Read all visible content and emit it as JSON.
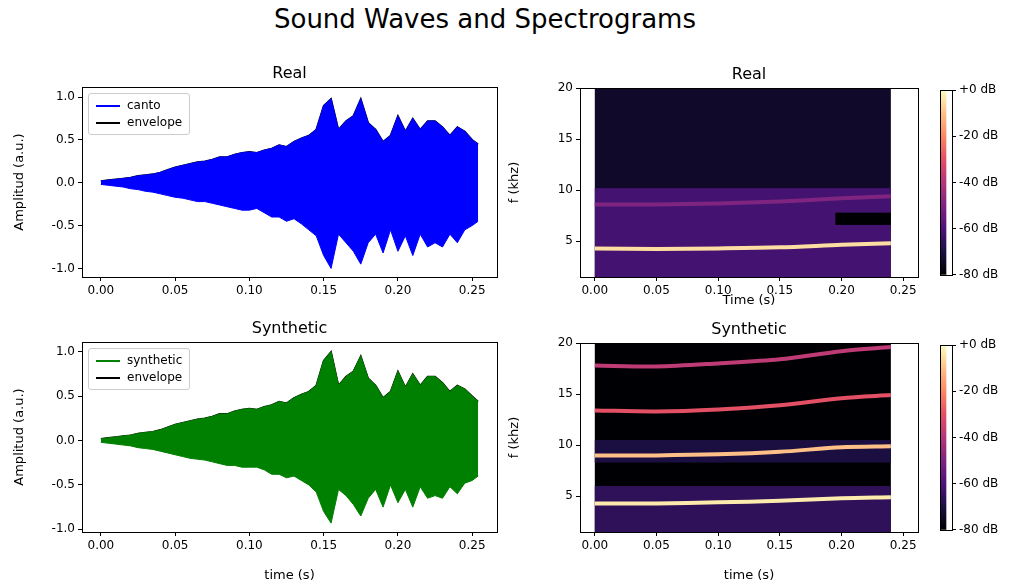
{
  "title": "Sound Waves and Spectrograms",
  "chart_data": [
    {
      "type": "line",
      "title": "Real",
      "y_label": "Amplitud (a.u.)",
      "x": [
        0,
        0.005,
        0.01,
        0.015,
        0.02,
        0.025,
        0.03,
        0.035,
        0.04,
        0.045,
        0.05,
        0.055,
        0.06,
        0.065,
        0.07,
        0.075,
        0.08,
        0.085,
        0.09,
        0.095,
        0.1,
        0.105,
        0.11,
        0.115,
        0.12,
        0.125,
        0.13,
        0.135,
        0.14,
        0.145,
        0.15,
        0.155,
        0.16,
        0.165,
        0.17,
        0.175,
        0.18,
        0.185,
        0.19,
        0.195,
        0.2,
        0.205,
        0.21,
        0.215,
        0.22,
        0.225,
        0.23,
        0.235,
        0.24,
        0.245,
        0.25,
        0.254
      ],
      "xlim": [
        -0.0127,
        0.2667
      ],
      "ylim": [
        -1.1,
        1.117
      ],
      "xticks": [
        {
          "value": 0,
          "label": "0.00"
        },
        {
          "value": 0.05,
          "label": "0.05"
        },
        {
          "value": 0.1,
          "label": "0.10"
        },
        {
          "value": 0.15,
          "label": "0.15"
        },
        {
          "value": 0.2,
          "label": "0.20"
        },
        {
          "value": 0.25,
          "label": "0.25"
        }
      ],
      "yticks": [
        {
          "value": -1,
          "label": "-1.0"
        },
        {
          "value": -0.5,
          "label": "-0.5"
        },
        {
          "value": 0,
          "label": "0.0"
        },
        {
          "value": 0.5,
          "label": "0.5"
        },
        {
          "value": 1,
          "label": "1.0"
        }
      ],
      "grid": false,
      "legend": "upper left",
      "series": [
        {
          "name": "canto",
          "color": "#0000ff",
          "values": [
            0.02,
            0.03,
            0.04,
            0.05,
            0.06,
            0.08,
            0.09,
            0.1,
            0.12,
            0.15,
            0.18,
            0.2,
            0.22,
            0.24,
            0.25,
            0.27,
            0.3,
            0.3,
            0.33,
            0.35,
            0.36,
            0.35,
            0.38,
            0.4,
            0.44,
            0.42,
            0.48,
            0.52,
            0.55,
            0.62,
            0.9,
            0.98,
            0.62,
            0.72,
            0.78,
            0.98,
            0.7,
            0.62,
            0.48,
            0.55,
            0.78,
            0.6,
            0.75,
            0.62,
            0.72,
            0.72,
            0.65,
            0.55,
            0.65,
            0.6,
            0.5,
            0.45
          ],
          "lower": [
            -0.02,
            -0.03,
            -0.04,
            -0.05,
            -0.07,
            -0.08,
            -0.1,
            -0.11,
            -0.13,
            -0.15,
            -0.17,
            -0.18,
            -0.2,
            -0.22,
            -0.22,
            -0.24,
            -0.26,
            -0.28,
            -0.3,
            -0.32,
            -0.32,
            -0.3,
            -0.35,
            -0.4,
            -0.4,
            -0.45,
            -0.42,
            -0.48,
            -0.55,
            -0.62,
            -0.85,
            -1.0,
            -0.6,
            -0.7,
            -0.8,
            -0.95,
            -0.7,
            -0.6,
            -0.82,
            -0.55,
            -0.8,
            -0.62,
            -0.85,
            -0.6,
            -0.75,
            -0.7,
            -0.75,
            -0.6,
            -0.7,
            -0.55,
            -0.5,
            -0.45
          ]
        },
        {
          "name": "envelope",
          "color": "#000000",
          "values": [
            0.02,
            0.03,
            0.04,
            0.05,
            0.06,
            0.08,
            0.09,
            0.1,
            0.12,
            0.15,
            0.18,
            0.2,
            0.22,
            0.24,
            0.25,
            0.27,
            0.3,
            0.3,
            0.33,
            0.35,
            0.36,
            0.35,
            0.38,
            0.4,
            0.44,
            0.42,
            0.48,
            0.52,
            0.55,
            0.62,
            0.9,
            0.98,
            0.62,
            0.72,
            0.78,
            0.98,
            0.7,
            0.62,
            0.48,
            0.55,
            0.78,
            0.6,
            0.75,
            0.62,
            0.72,
            0.72,
            0.65,
            0.55,
            0.65,
            0.6,
            0.5,
            0.45
          ]
        }
      ]
    },
    {
      "type": "spectrogram",
      "title": "Real",
      "x_label": "Time (s)",
      "y_label": "f (khz)",
      "xlim": [
        -0.012,
        0.262
      ],
      "ylim": [
        1.5,
        20
      ],
      "xticks": [
        {
          "value": 0,
          "label": "0.00"
        },
        {
          "value": 0.05,
          "label": "0.05"
        },
        {
          "value": 0.1,
          "label": "0.10"
        },
        {
          "value": 0.15,
          "label": "0.15"
        },
        {
          "value": 0.2,
          "label": "0.20"
        },
        {
          "value": 0.25,
          "label": "0.25"
        }
      ],
      "yticks": [
        5,
        10,
        15,
        20
      ],
      "grid": false,
      "bands": [
        {
          "t": [
            0,
            0.24
          ],
          "f": [
            1.5,
            20
          ],
          "db": -74
        },
        {
          "t": [
            0,
            0.24
          ],
          "f": [
            1.5,
            10.2
          ],
          "db": -62
        },
        {
          "t": [
            0.195,
            0.24
          ],
          "f": [
            6.6,
            7.8
          ],
          "db": -80
        }
      ],
      "tracks": [
        {
          "x": [
            0,
            0.05,
            0.1,
            0.15,
            0.2,
            0.24
          ],
          "values": [
            4.3,
            4.25,
            4.3,
            4.4,
            4.65,
            4.8
          ],
          "db": -5
        },
        {
          "x": [
            0,
            0.05,
            0.1,
            0.15,
            0.2,
            0.24
          ],
          "values": [
            8.6,
            8.6,
            8.7,
            8.9,
            9.2,
            9.4
          ],
          "db": -50
        }
      ],
      "colorbar": {
        "range": [
          -80,
          0
        ],
        "ticks": [
          {
            "value": 0,
            "label": "+0 dB"
          },
          {
            "value": -20,
            "label": "-20 dB"
          },
          {
            "value": -40,
            "label": "-40 dB"
          },
          {
            "value": -60,
            "label": "-60 dB"
          },
          {
            "value": -80,
            "label": "-80 dB"
          }
        ]
      }
    },
    {
      "type": "line",
      "title": "Synthetic",
      "x_label": "time (s)",
      "y_label": "Amplitud (a.u.)",
      "x": [
        0,
        0.005,
        0.01,
        0.015,
        0.02,
        0.025,
        0.03,
        0.035,
        0.04,
        0.045,
        0.05,
        0.055,
        0.06,
        0.065,
        0.07,
        0.075,
        0.08,
        0.085,
        0.09,
        0.095,
        0.1,
        0.105,
        0.11,
        0.115,
        0.12,
        0.125,
        0.13,
        0.135,
        0.14,
        0.145,
        0.15,
        0.155,
        0.16,
        0.165,
        0.17,
        0.175,
        0.18,
        0.185,
        0.19,
        0.195,
        0.2,
        0.205,
        0.21,
        0.215,
        0.22,
        0.225,
        0.23,
        0.235,
        0.24,
        0.245,
        0.25,
        0.254
      ],
      "xlim": [
        -0.0127,
        0.2667
      ],
      "ylim": [
        -1.03,
        1.11
      ],
      "xticks": [
        {
          "value": 0,
          "label": "0.00"
        },
        {
          "value": 0.05,
          "label": "0.05"
        },
        {
          "value": 0.1,
          "label": "0.10"
        },
        {
          "value": 0.15,
          "label": "0.15"
        },
        {
          "value": 0.2,
          "label": "0.20"
        },
        {
          "value": 0.25,
          "label": "0.25"
        }
      ],
      "yticks": [
        {
          "value": -1,
          "label": "-1.0"
        },
        {
          "value": -0.5,
          "label": "-0.5"
        },
        {
          "value": 0,
          "label": "0.0"
        },
        {
          "value": 0.5,
          "label": "0.5"
        },
        {
          "value": 1,
          "label": "1.0"
        }
      ],
      "grid": false,
      "legend": "upper left",
      "series": [
        {
          "name": "synthetic",
          "color": "#008000",
          "values": [
            0.02,
            0.03,
            0.04,
            0.05,
            0.06,
            0.08,
            0.09,
            0.1,
            0.12,
            0.15,
            0.18,
            0.2,
            0.22,
            0.24,
            0.25,
            0.27,
            0.3,
            0.3,
            0.33,
            0.35,
            0.36,
            0.35,
            0.38,
            0.4,
            0.44,
            0.42,
            0.48,
            0.52,
            0.55,
            0.62,
            0.9,
            1.0,
            0.62,
            0.72,
            0.78,
            0.95,
            0.7,
            0.62,
            0.48,
            0.55,
            0.78,
            0.6,
            0.75,
            0.62,
            0.72,
            0.72,
            0.65,
            0.55,
            0.62,
            0.58,
            0.5,
            0.44
          ],
          "lower": [
            -0.02,
            -0.03,
            -0.04,
            -0.05,
            -0.06,
            -0.08,
            -0.09,
            -0.1,
            -0.12,
            -0.14,
            -0.16,
            -0.18,
            -0.2,
            -0.21,
            -0.22,
            -0.24,
            -0.26,
            -0.28,
            -0.28,
            -0.3,
            -0.3,
            -0.3,
            -0.33,
            -0.38,
            -0.38,
            -0.42,
            -0.4,
            -0.45,
            -0.5,
            -0.58,
            -0.8,
            -0.93,
            -0.55,
            -0.62,
            -0.72,
            -0.85,
            -0.65,
            -0.55,
            -0.75,
            -0.5,
            -0.7,
            -0.55,
            -0.75,
            -0.52,
            -0.65,
            -0.62,
            -0.65,
            -0.52,
            -0.6,
            -0.48,
            -0.45,
            -0.4
          ]
        },
        {
          "name": "envelope",
          "color": "#000000",
          "values": [
            0.02,
            0.03,
            0.04,
            0.05,
            0.06,
            0.08,
            0.09,
            0.1,
            0.12,
            0.15,
            0.18,
            0.2,
            0.22,
            0.24,
            0.25,
            0.27,
            0.3,
            0.3,
            0.33,
            0.35,
            0.36,
            0.35,
            0.38,
            0.4,
            0.44,
            0.42,
            0.48,
            0.52,
            0.55,
            0.62,
            0.9,
            1.0,
            0.62,
            0.72,
            0.78,
            0.95,
            0.7,
            0.62,
            0.48,
            0.55,
            0.78,
            0.6,
            0.75,
            0.62,
            0.72,
            0.72,
            0.65,
            0.55,
            0.62,
            0.58,
            0.5,
            0.44
          ]
        }
      ]
    },
    {
      "type": "spectrogram",
      "title": "Synthetic",
      "x_label": "time (s)",
      "y_label": "f (khz)",
      "xlim": [
        -0.012,
        0.262
      ],
      "ylim": [
        1.5,
        20
      ],
      "xticks": [
        {
          "value": 0,
          "label": "0.00"
        },
        {
          "value": 0.05,
          "label": "0.05"
        },
        {
          "value": 0.1,
          "label": "0.10"
        },
        {
          "value": 0.15,
          "label": "0.15"
        },
        {
          "value": 0.2,
          "label": "0.20"
        },
        {
          "value": 0.25,
          "label": "0.25"
        }
      ],
      "yticks": [
        5,
        10,
        15,
        20
      ],
      "grid": false,
      "bands": [
        {
          "t": [
            0,
            0.24
          ],
          "f": [
            1.5,
            20
          ],
          "db": -80
        },
        {
          "t": [
            0,
            0.24
          ],
          "f": [
            1.5,
            6.0
          ],
          "db": -66
        },
        {
          "t": [
            0,
            0.24
          ],
          "f": [
            8.3,
            10.5
          ],
          "db": -70
        }
      ],
      "tracks": [
        {
          "x": [
            0,
            0.05,
            0.1,
            0.15,
            0.2,
            0.24
          ],
          "values": [
            4.3,
            4.3,
            4.4,
            4.55,
            4.8,
            4.9
          ],
          "db": -3
        },
        {
          "x": [
            0,
            0.05,
            0.1,
            0.15,
            0.2,
            0.24
          ],
          "values": [
            9.0,
            9.0,
            9.1,
            9.35,
            9.8,
            9.9
          ],
          "db": -10
        },
        {
          "x": [
            0,
            0.05,
            0.1,
            0.15,
            0.2,
            0.24
          ],
          "values": [
            13.4,
            13.3,
            13.5,
            13.9,
            14.6,
            14.9
          ],
          "db": -30
        },
        {
          "x": [
            0,
            0.05,
            0.1,
            0.15,
            0.2,
            0.24
          ],
          "values": [
            17.8,
            17.7,
            18.0,
            18.4,
            19.2,
            19.6
          ],
          "db": -38
        }
      ],
      "colorbar": {
        "range": [
          -80,
          0
        ],
        "ticks": [
          {
            "value": 0,
            "label": "+0 dB"
          },
          {
            "value": -20,
            "label": "-20 dB"
          },
          {
            "value": -40,
            "label": "-40 dB"
          },
          {
            "value": -60,
            "label": "-60 dB"
          },
          {
            "value": -80,
            "label": "-80 dB"
          }
        ]
      }
    }
  ]
}
